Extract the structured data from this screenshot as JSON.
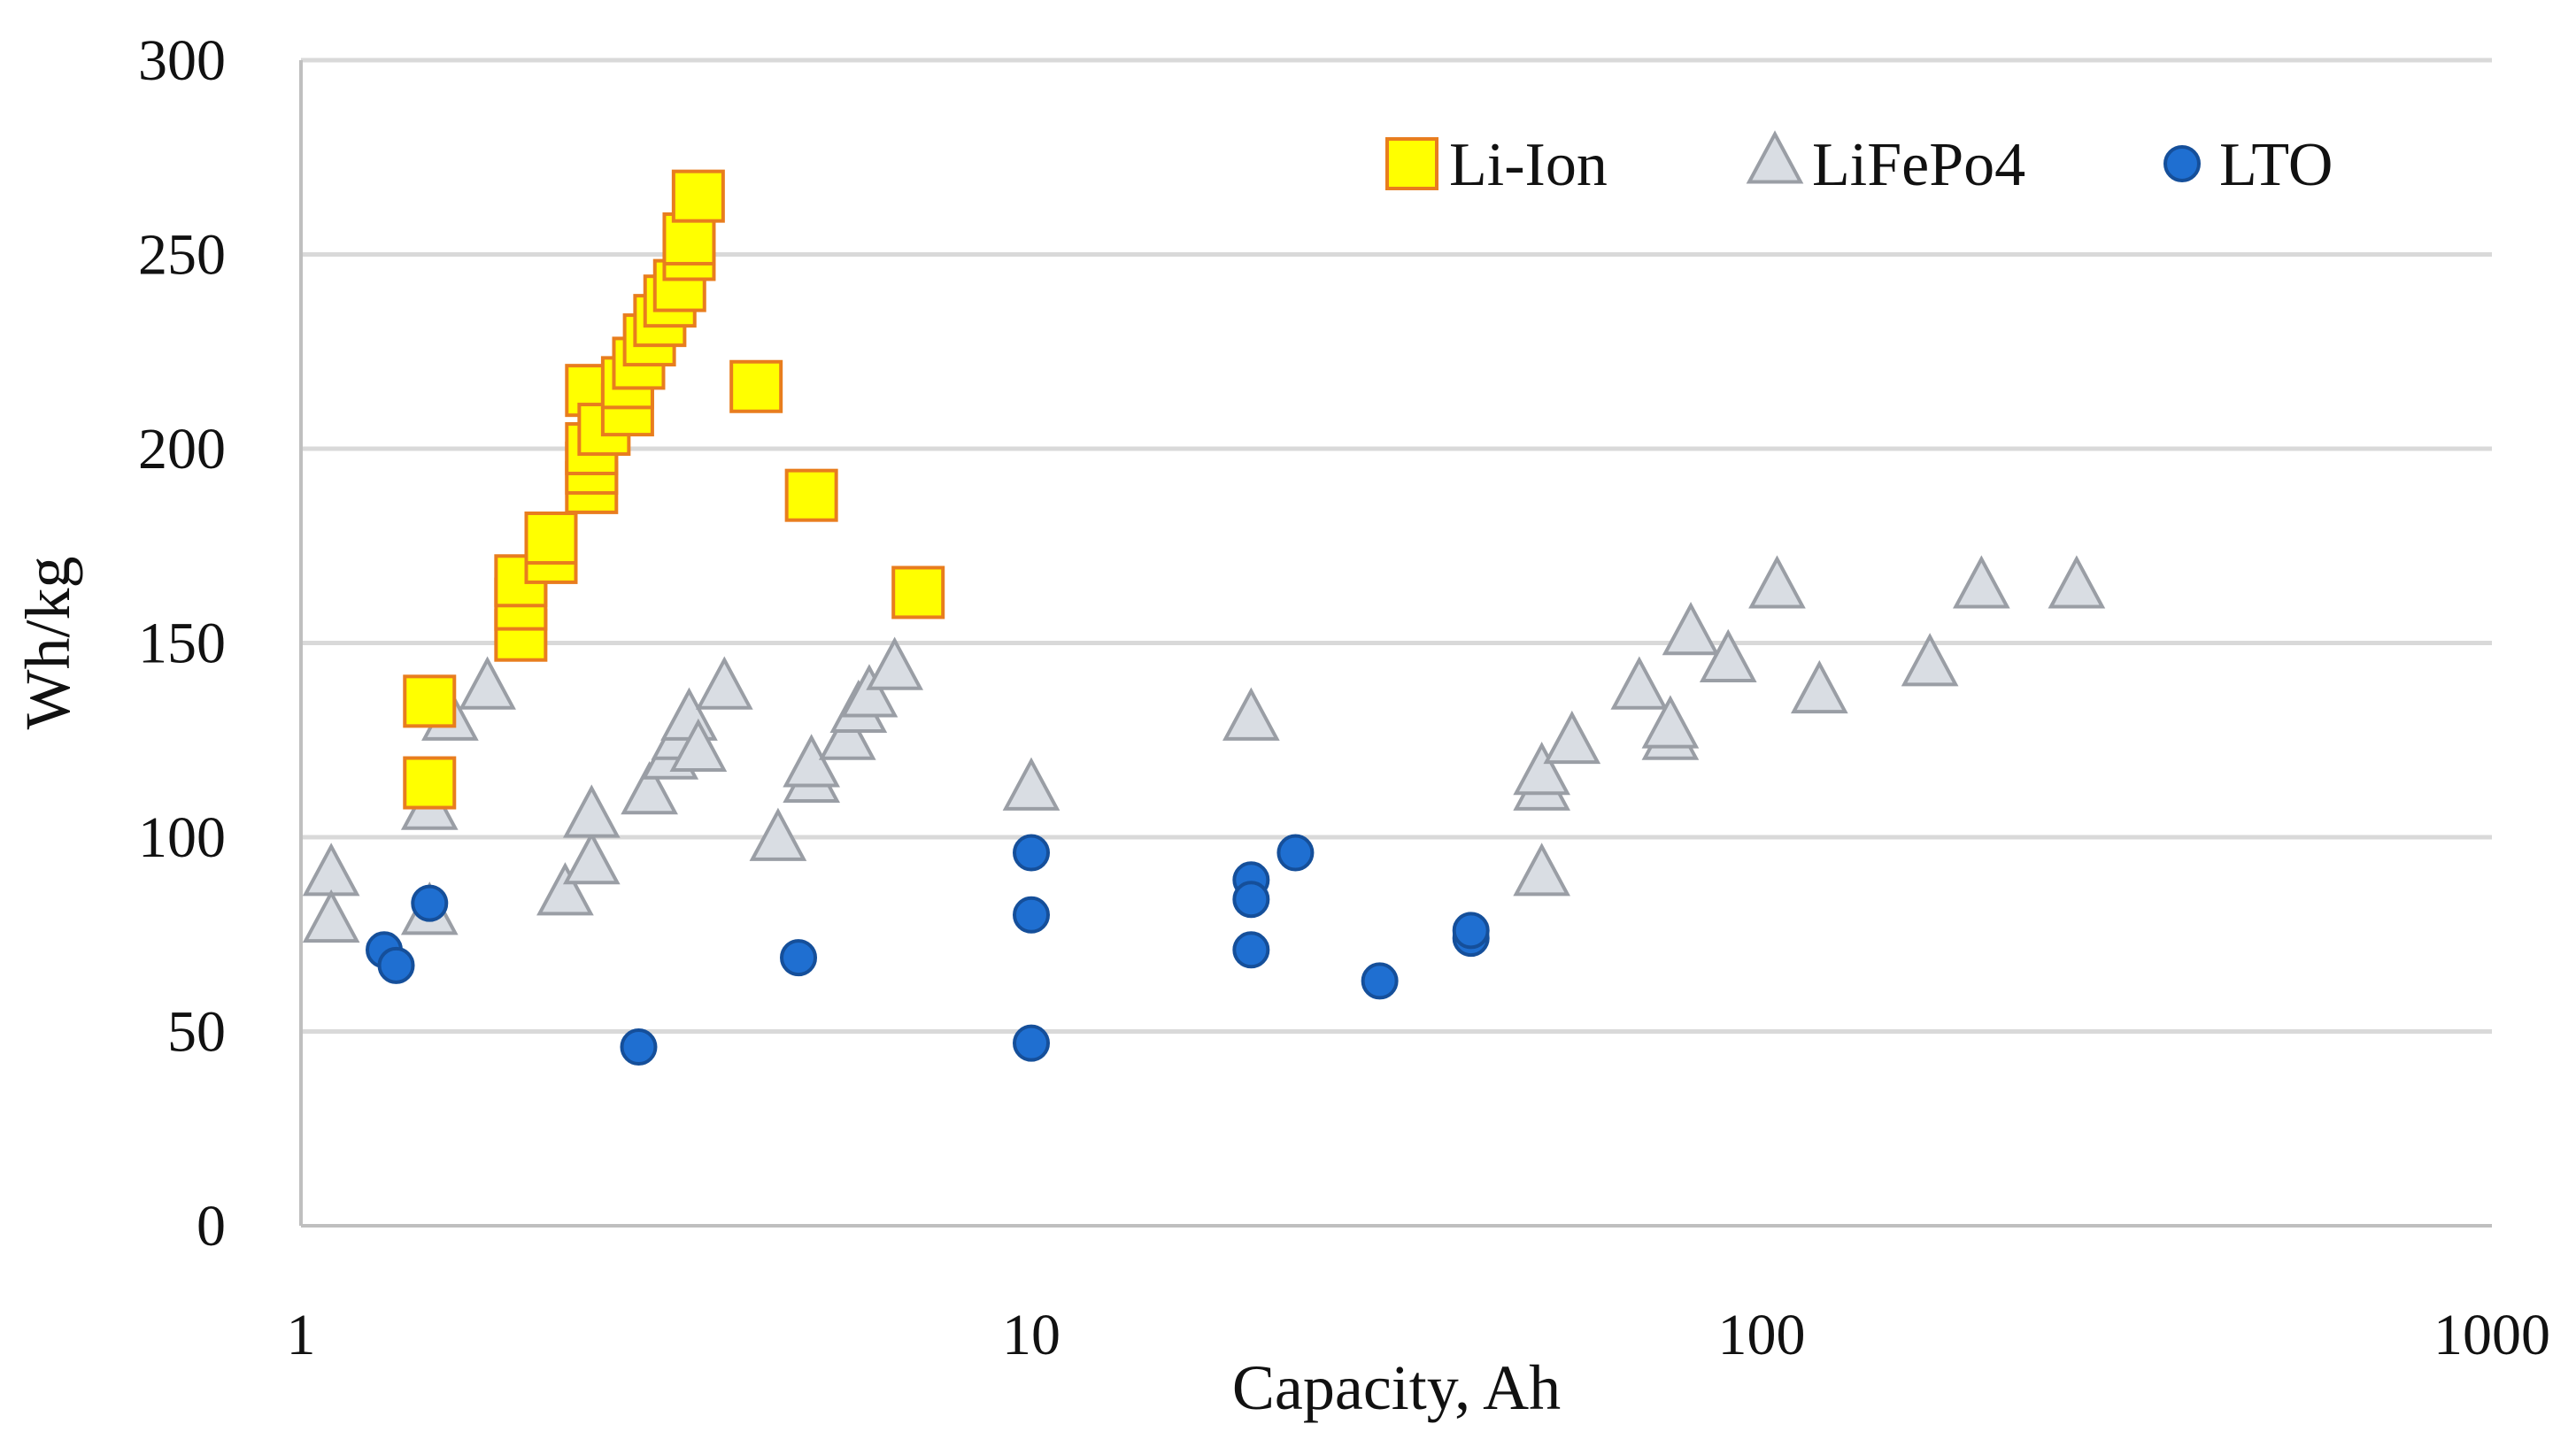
{
  "chart_data": {
    "type": "scatter",
    "title": "",
    "xlabel": "Capacity, Ah",
    "ylabel": "Wh/kg",
    "xscale": "log",
    "xlim": [
      1,
      1000
    ],
    "ylim": [
      0,
      300
    ],
    "x_ticks": [
      1,
      10,
      100,
      1000
    ],
    "x_tick_labels": [
      "1",
      "10",
      "100",
      "1000"
    ],
    "y_ticks": [
      0,
      50,
      100,
      150,
      200,
      250,
      300
    ],
    "y_tick_labels": [
      "0",
      "50",
      "100",
      "150",
      "200",
      "250",
      "300"
    ],
    "grid": "horizontal",
    "legend_position": "top-right",
    "colors": {
      "li_ion_fill": "#ffff00",
      "li_ion_stroke": "#e87d1e",
      "lifepo4_fill": "#d9dde3",
      "lifepo4_stroke": "#9a9ea5",
      "lto_fill": "#1f6fd1",
      "lto_stroke": "#154f9a",
      "grid": "#d9d9d9",
      "axis": "#bfbfbf"
    },
    "series": [
      {
        "name": "Li-Ion",
        "marker": "square",
        "points": [
          [
            1.5,
            135
          ],
          [
            1.5,
            114
          ],
          [
            2.0,
            152
          ],
          [
            2.0,
            160
          ],
          [
            2.0,
            166
          ],
          [
            2.2,
            172
          ],
          [
            2.2,
            177
          ],
          [
            2.5,
            190
          ],
          [
            2.5,
            195
          ],
          [
            2.5,
            200
          ],
          [
            2.5,
            215
          ],
          [
            2.6,
            205
          ],
          [
            2.8,
            210
          ],
          [
            2.8,
            217
          ],
          [
            2.9,
            222
          ],
          [
            3.0,
            228
          ],
          [
            3.1,
            233
          ],
          [
            3.2,
            238
          ],
          [
            3.3,
            242
          ],
          [
            3.4,
            250
          ],
          [
            3.4,
            254
          ],
          [
            3.5,
            265
          ],
          [
            4.2,
            216
          ],
          [
            5.0,
            188
          ],
          [
            7.0,
            163
          ]
        ]
      },
      {
        "name": "LiFePo4",
        "marker": "triangle",
        "points": [
          [
            1.1,
            90
          ],
          [
            1.1,
            78
          ],
          [
            1.5,
            80
          ],
          [
            1.5,
            107
          ],
          [
            1.6,
            130
          ],
          [
            1.8,
            138
          ],
          [
            2.3,
            85
          ],
          [
            2.5,
            93
          ],
          [
            2.5,
            105
          ],
          [
            3.0,
            111
          ],
          [
            3.2,
            120
          ],
          [
            3.3,
            125
          ],
          [
            3.4,
            130
          ],
          [
            3.5,
            122
          ],
          [
            3.8,
            138
          ],
          [
            4.5,
            99
          ],
          [
            5.0,
            114
          ],
          [
            5.0,
            118
          ],
          [
            5.6,
            125
          ],
          [
            5.8,
            132
          ],
          [
            6.0,
            136
          ],
          [
            6.5,
            143
          ],
          [
            10,
            112
          ],
          [
            20,
            130
          ],
          [
            50,
            90
          ],
          [
            50,
            112
          ],
          [
            50,
            116
          ],
          [
            55,
            124
          ],
          [
            68,
            138
          ],
          [
            75,
            125
          ],
          [
            75,
            128
          ],
          [
            80,
            152
          ],
          [
            90,
            145
          ],
          [
            105,
            164
          ],
          [
            120,
            137
          ],
          [
            170,
            144
          ],
          [
            200,
            164
          ],
          [
            270,
            164
          ]
        ]
      },
      {
        "name": "LTO",
        "marker": "circle",
        "points": [
          [
            1.3,
            71
          ],
          [
            1.35,
            67
          ],
          [
            1.5,
            83
          ],
          [
            2.9,
            46
          ],
          [
            4.8,
            69
          ],
          [
            10,
            96
          ],
          [
            10,
            80
          ],
          [
            10,
            47
          ],
          [
            20,
            89
          ],
          [
            20,
            84
          ],
          [
            20,
            71
          ],
          [
            23,
            96
          ],
          [
            30,
            63
          ],
          [
            40,
            74
          ],
          [
            40,
            76
          ]
        ]
      }
    ]
  }
}
